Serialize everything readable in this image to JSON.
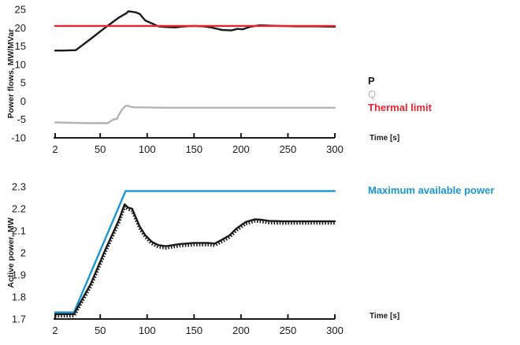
{
  "chart_data": [
    {
      "type": "line",
      "ylabel": "Power flows, MW/MVar",
      "xlabel": "Time [s]",
      "xlim": [
        2,
        300
      ],
      "ylim": [
        -10,
        25
      ],
      "xticks": [
        "2",
        "50",
        "100",
        "150",
        "200",
        "250",
        "300"
      ],
      "yticks": [
        "-10",
        "-5",
        "0",
        "5",
        "10",
        "15",
        "20",
        "25"
      ],
      "grid": false,
      "legend_position": "right",
      "series": [
        {
          "name": "P",
          "color": "#1a1a1a",
          "x": [
            2,
            10,
            24,
            40,
            55,
            70,
            78,
            80,
            88,
            92,
            98,
            105,
            112,
            120,
            130,
            140,
            150,
            160,
            168,
            180,
            190,
            196,
            202,
            210,
            220,
            240,
            260,
            280,
            300
          ],
          "y": [
            13.8,
            13.8,
            13.9,
            17,
            20,
            22.8,
            24,
            24.5,
            24.2,
            23.8,
            22,
            21.2,
            20.4,
            20.2,
            20.1,
            20.4,
            20.5,
            20.4,
            20.1,
            19.4,
            19.3,
            19.7,
            19.6,
            20.3,
            20.7,
            20.5,
            20.4,
            20.4,
            20.3
          ]
        },
        {
          "name": "Q",
          "color": "#b3b3b3",
          "x": [
            2,
            20,
            40,
            58,
            64,
            68,
            70,
            73,
            76,
            79,
            82,
            87,
            95,
            120,
            150,
            200,
            250,
            300
          ],
          "y": [
            -5.8,
            -5.9,
            -6,
            -6,
            -5,
            -4.8,
            -3.6,
            -2.4,
            -1.5,
            -1.2,
            -1.5,
            -1.7,
            -1.7,
            -1.8,
            -1.8,
            -1.8,
            -1.8,
            -1.8
          ]
        },
        {
          "name": "Thermal limit",
          "color": "#e8252e",
          "x": [
            2,
            300
          ],
          "y": [
            20.5,
            20.5
          ]
        }
      ]
    },
    {
      "type": "line",
      "ylabel": "Active power, MW",
      "xlabel": "Time [s]",
      "xlim": [
        2,
        300
      ],
      "ylim": [
        1.7,
        2.3
      ],
      "xticks": [
        "2",
        "50",
        "100",
        "150",
        "200",
        "250",
        "300"
      ],
      "yticks": [
        "1.7",
        "1.8",
        "1.9",
        "2",
        "2.1",
        "2.2",
        "2.3"
      ],
      "grid": false,
      "legend_position": "top-right",
      "series": [
        {
          "name": "Maximum available power",
          "color": "#1a96d2",
          "style": "solid",
          "x": [
            2,
            22,
            77,
            300
          ],
          "y": [
            1.73,
            1.73,
            2.28,
            2.28
          ]
        },
        {
          "color": "#1a1a1a",
          "style": "solid",
          "x": [
            2,
            22,
            40,
            55,
            70,
            76,
            80,
            84,
            88,
            92,
            98,
            105,
            112,
            120,
            135,
            150,
            165,
            172,
            180,
            188,
            195,
            205,
            215,
            222,
            230,
            245,
            265,
            285,
            300
          ],
          "y": [
            1.722,
            1.722,
            1.86,
            2.01,
            2.15,
            2.22,
            2.205,
            2.2,
            2.16,
            2.12,
            2.08,
            2.05,
            2.035,
            2.03,
            2.04,
            2.045,
            2.045,
            2.042,
            2.06,
            2.08,
            2.11,
            2.14,
            2.152,
            2.15,
            2.145,
            2.143,
            2.143,
            2.143,
            2.143
          ]
        },
        {
          "color": "#1a1a1a",
          "style": "dotted",
          "x": [
            2,
            22,
            40,
            55,
            70,
            76,
            80,
            84,
            88,
            92,
            98,
            105,
            112,
            120,
            135,
            150,
            165,
            172,
            180,
            188,
            195,
            205,
            215,
            222,
            230,
            245,
            265,
            285,
            300
          ],
          "y": [
            1.714,
            1.714,
            1.85,
            2.0,
            2.14,
            2.21,
            2.198,
            2.192,
            2.152,
            2.112,
            2.072,
            2.042,
            2.027,
            2.022,
            2.032,
            2.037,
            2.037,
            2.034,
            2.052,
            2.072,
            2.102,
            2.132,
            2.144,
            2.142,
            2.137,
            2.135,
            2.135,
            2.135,
            2.135
          ]
        }
      ]
    }
  ]
}
